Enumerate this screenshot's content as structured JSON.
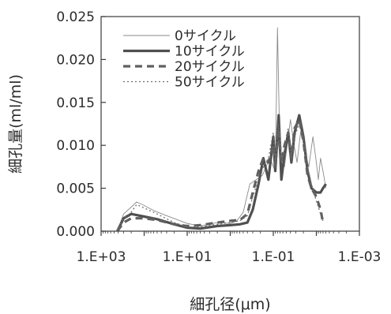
{
  "chart_data": {
    "type": "line",
    "title": "",
    "xlabel": "細孔径(μm)",
    "ylabel": "細孔量(ml/ml)",
    "x_scale": "log",
    "x_reversed": true,
    "xlim": [
      1000,
      0.001
    ],
    "ylim": [
      0,
      0.025
    ],
    "x_tick_labels": [
      "1.E+03",
      "1.E+01",
      "1.E-01",
      "1.E-03"
    ],
    "y_tick_labels": [
      "0.000",
      "0.005",
      "0.010",
      "0.015",
      "0.020",
      "0.025"
    ],
    "grid": false,
    "legend_position": "top-right",
    "series": [
      {
        "name": "0サイクル",
        "color": "#8a8a8a",
        "style": "thin-solid",
        "points": [
          [
            420,
            0.0
          ],
          [
            300,
            0.002
          ],
          [
            200,
            0.0028
          ],
          [
            150,
            0.0034
          ],
          [
            100,
            0.003
          ],
          [
            60,
            0.0024
          ],
          [
            30,
            0.0018
          ],
          [
            10,
            0.0009
          ],
          [
            5,
            0.0006
          ],
          [
            2,
            0.001
          ],
          [
            1,
            0.0009
          ],
          [
            0.7,
            0.0012
          ],
          [
            0.5,
            0.0022
          ],
          [
            0.35,
            0.0055
          ],
          [
            0.25,
            0.006
          ],
          [
            0.18,
            0.0065
          ],
          [
            0.12,
            0.0085
          ],
          [
            0.09,
            0.007
          ],
          [
            0.08,
            0.0237
          ],
          [
            0.07,
            0.009
          ],
          [
            0.055,
            0.0075
          ],
          [
            0.045,
            0.011
          ],
          [
            0.04,
            0.013
          ],
          [
            0.033,
            0.01
          ],
          [
            0.028,
            0.008
          ],
          [
            0.022,
            0.0125
          ],
          [
            0.018,
            0.009
          ],
          [
            0.015,
            0.0075
          ],
          [
            0.012,
            0.011
          ],
          [
            0.01,
            0.008
          ],
          [
            0.009,
            0.006
          ],
          [
            0.008,
            0.0085
          ],
          [
            0.007,
            0.007
          ],
          [
            0.006,
            0.005
          ]
        ]
      },
      {
        "name": "10サイクル",
        "color": "#505050",
        "style": "thick-solid",
        "points": [
          [
            420,
            0.0
          ],
          [
            300,
            0.0015
          ],
          [
            200,
            0.002
          ],
          [
            100,
            0.0017
          ],
          [
            50,
            0.0014
          ],
          [
            20,
            0.0008
          ],
          [
            10,
            0.0004
          ],
          [
            5,
            0.0003
          ],
          [
            2,
            0.0006
          ],
          [
            1,
            0.0007
          ],
          [
            0.6,
            0.0008
          ],
          [
            0.4,
            0.001
          ],
          [
            0.3,
            0.0025
          ],
          [
            0.22,
            0.0055
          ],
          [
            0.17,
            0.0085
          ],
          [
            0.13,
            0.006
          ],
          [
            0.1,
            0.011
          ],
          [
            0.09,
            0.007
          ],
          [
            0.075,
            0.0135
          ],
          [
            0.065,
            0.006
          ],
          [
            0.055,
            0.009
          ],
          [
            0.045,
            0.0115
          ],
          [
            0.038,
            0.008
          ],
          [
            0.032,
            0.0115
          ],
          [
            0.025,
            0.0135
          ],
          [
            0.02,
            0.011
          ],
          [
            0.016,
            0.007
          ],
          [
            0.013,
            0.005
          ],
          [
            0.01,
            0.0045
          ],
          [
            0.008,
            0.0045
          ],
          [
            0.007,
            0.005
          ],
          [
            0.006,
            0.0055
          ]
        ]
      },
      {
        "name": "20サイクル",
        "color": "#606060",
        "style": "thick-dash",
        "points": [
          [
            420,
            0.0
          ],
          [
            300,
            0.001
          ],
          [
            200,
            0.0015
          ],
          [
            100,
            0.0015
          ],
          [
            50,
            0.0013
          ],
          [
            20,
            0.0008
          ],
          [
            10,
            0.0006
          ],
          [
            5,
            0.0007
          ],
          [
            2,
            0.001
          ],
          [
            1,
            0.0012
          ],
          [
            0.6,
            0.0013
          ],
          [
            0.4,
            0.002
          ],
          [
            0.3,
            0.0045
          ],
          [
            0.22,
            0.007
          ],
          [
            0.17,
            0.0085
          ],
          [
            0.13,
            0.008
          ],
          [
            0.1,
            0.01
          ],
          [
            0.09,
            0.0075
          ],
          [
            0.075,
            0.012
          ],
          [
            0.065,
            0.008
          ],
          [
            0.055,
            0.01
          ],
          [
            0.045,
            0.0115
          ],
          [
            0.038,
            0.0085
          ],
          [
            0.032,
            0.012
          ],
          [
            0.025,
            0.013
          ],
          [
            0.02,
            0.0105
          ],
          [
            0.016,
            0.0065
          ],
          [
            0.013,
            0.005
          ],
          [
            0.01,
            0.004
          ],
          [
            0.008,
            0.0025
          ],
          [
            0.007,
            0.001
          ]
        ]
      },
      {
        "name": "50サイクル",
        "color": "#707070",
        "style": "dotted",
        "points": [
          [
            420,
            0.0
          ],
          [
            300,
            0.0015
          ],
          [
            200,
            0.0022
          ],
          [
            150,
            0.0031
          ],
          [
            100,
            0.0027
          ],
          [
            50,
            0.002
          ],
          [
            20,
            0.001
          ],
          [
            10,
            0.0005
          ],
          [
            5,
            0.0005
          ],
          [
            2,
            0.0008
          ],
          [
            1,
            0.001
          ],
          [
            0.6,
            0.0012
          ],
          [
            0.4,
            0.0018
          ],
          [
            0.3,
            0.004
          ],
          [
            0.22,
            0.006
          ],
          [
            0.17,
            0.0075
          ],
          [
            0.13,
            0.0085
          ],
          [
            0.1,
            0.0115
          ],
          [
            0.09,
            0.008
          ],
          [
            0.075,
            0.0125
          ],
          [
            0.065,
            0.0085
          ],
          [
            0.055,
            0.0095
          ],
          [
            0.045,
            0.012
          ],
          [
            0.038,
            0.009
          ],
          [
            0.032,
            0.011
          ],
          [
            0.025,
            0.0125
          ],
          [
            0.02,
            0.0105
          ],
          [
            0.016,
            0.0075
          ],
          [
            0.013,
            0.0055
          ],
          [
            0.01,
            0.0035
          ],
          [
            0.008,
            0.002
          ],
          [
            0.007,
            0.0012
          ]
        ]
      }
    ]
  }
}
